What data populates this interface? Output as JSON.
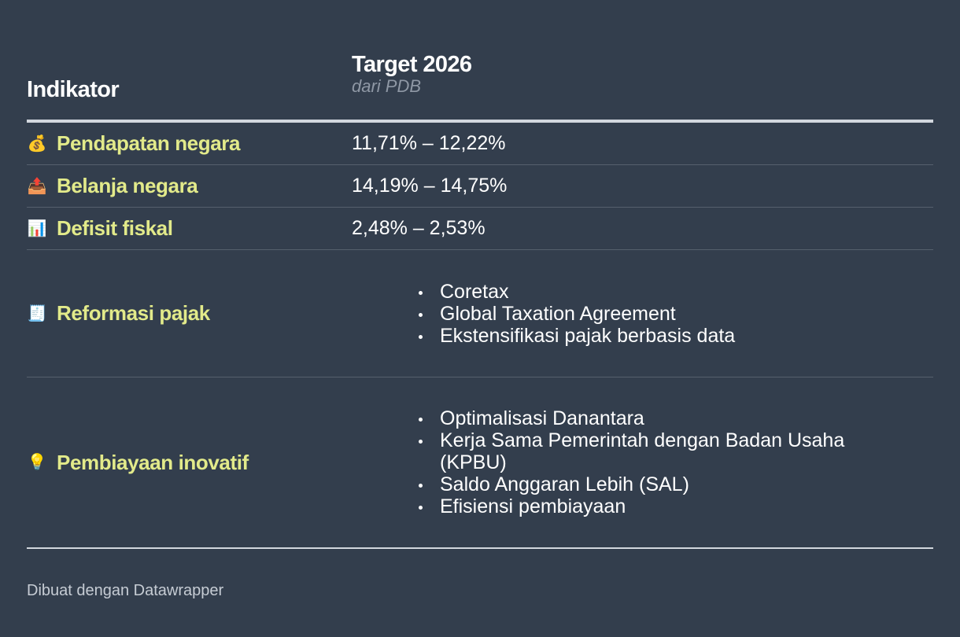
{
  "header": {
    "col1": "Indikator",
    "col2_title": "Target 2026",
    "col2_sub": "dari PDB"
  },
  "rows": [
    {
      "emoji": "💰",
      "icon": "money-bag-icon",
      "label": "Pendapatan negara",
      "value": "11,71% – 12,22%"
    },
    {
      "emoji": "📤",
      "icon": "outbox-tray-icon",
      "label": "Belanja negara",
      "value": "14,19% – 14,75%"
    },
    {
      "emoji": "📊",
      "icon": "bar-chart-icon",
      "label": "Defisit fiskal",
      "value": "2,48% – 2,53%"
    },
    {
      "emoji": "🧾",
      "icon": "receipt-icon",
      "label": "Reformasi pajak",
      "items": [
        "Coretax",
        "Global Taxation Agreement",
        "Ekstensifikasi pajak berbasis data"
      ]
    },
    {
      "emoji": "💡",
      "icon": "light-bulb-icon",
      "label": "Pembiayaan inovatif",
      "items": [
        "Optimalisasi Danantara",
        "Kerja Sama Pemerintah dengan Badan Usaha (KPBU)",
        "Saldo Anggaran Lebih (SAL)",
        "Efisiensi pembiayaan"
      ]
    }
  ],
  "footer": "Dibuat dengan Datawrapper",
  "colors": {
    "background": "#333e4d",
    "label": "#e2ea8a",
    "subtitle": "#8f98a5"
  }
}
